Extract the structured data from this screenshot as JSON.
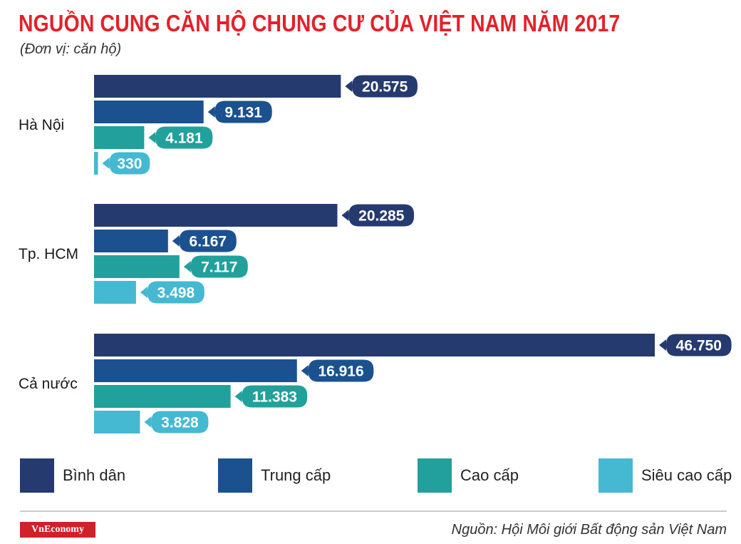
{
  "title": "NGUỒN CUNG CĂN HỘ CHUNG CƯ CỦA VIỆT NAM NĂM 2017",
  "subtitle": "(Đơn vị: căn hộ)",
  "source": "Nguồn: Hội Môi giới Bất động sản Việt Nam",
  "logo": "VnEconomy",
  "chart_data": {
    "type": "bar",
    "orientation": "horizontal",
    "categories": [
      "Hà Nội",
      "Tp. HCM",
      "Cả nước"
    ],
    "series": [
      {
        "name": "Bình dân",
        "color": "#253a6e",
        "values": [
          20575,
          20285,
          46750
        ],
        "labels": [
          "20.575",
          "20.285",
          "46.750"
        ]
      },
      {
        "name": "Trung cấp",
        "color": "#1c5190",
        "values": [
          9131,
          6167,
          16916
        ],
        "labels": [
          "9.131",
          "6.167",
          "16.916"
        ]
      },
      {
        "name": "Cao cấp",
        "color": "#22a19c",
        "values": [
          4181,
          7117,
          11383
        ],
        "labels": [
          "4.181",
          "7.117",
          "11.383"
        ]
      },
      {
        "name": "Siêu cao cấp",
        "color": "#46b9d2",
        "values": [
          330,
          3498,
          3828
        ],
        "labels": [
          "330",
          "3.498",
          "3.828"
        ]
      }
    ],
    "xlim": [
      0,
      46750
    ],
    "grid": false,
    "legend_position": "bottom"
  }
}
